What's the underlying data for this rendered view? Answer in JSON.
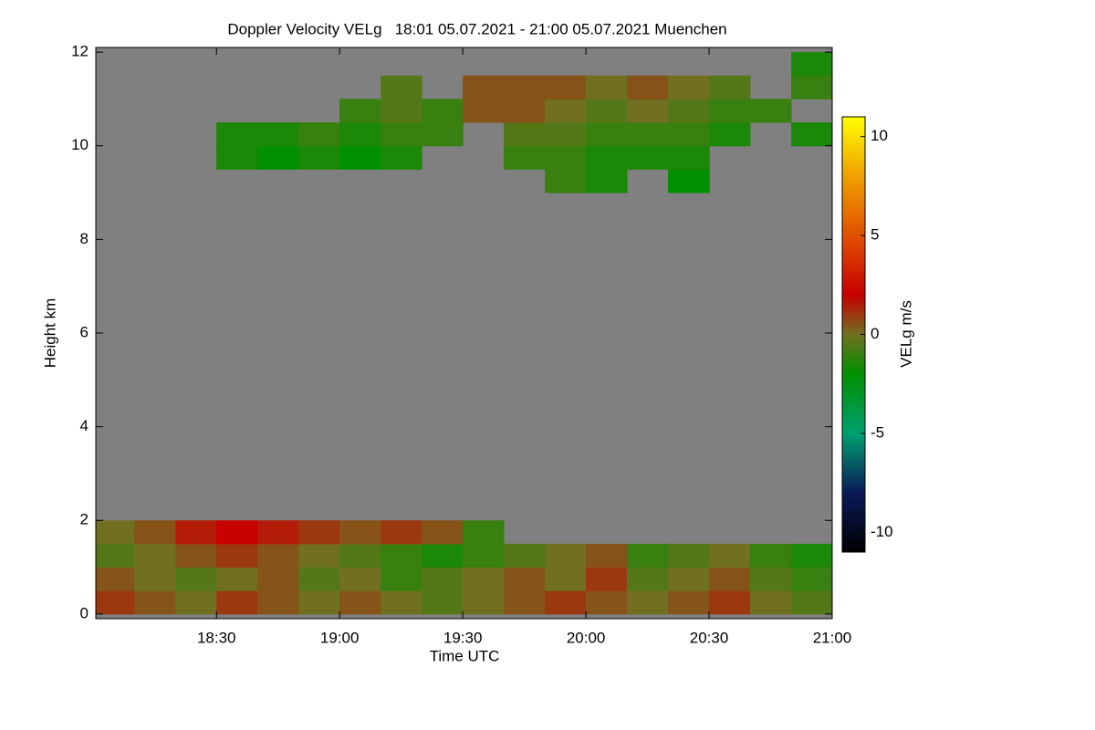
{
  "chart_data": {
    "type": "heatmap",
    "title": "Doppler Velocity VELg   18:01 05.07.2021 - 21:00 05.07.2021 Muenchen",
    "xlabel": "Time UTC",
    "ylabel": "Height km",
    "colorbar_label": "VELg m/s",
    "background": "#808080",
    "xlim": [
      18.01,
      21.0
    ],
    "xticks": [
      {
        "value": 18.5,
        "label": "18:30"
      },
      {
        "value": 19.0,
        "label": "19:00"
      },
      {
        "value": 19.5,
        "label": "19:30"
      },
      {
        "value": 20.0,
        "label": "20:00"
      },
      {
        "value": 20.5,
        "label": "20:30"
      },
      {
        "value": 21.0,
        "label": "21:00"
      }
    ],
    "ylim": [
      -0.1,
      12.1
    ],
    "yticks": [
      0,
      2,
      4,
      6,
      8,
      10,
      12
    ],
    "zlim": [
      -11,
      11
    ],
    "zticks": [
      -10,
      -5,
      0,
      5,
      10
    ],
    "colorscale": [
      [
        -11,
        "#000000"
      ],
      [
        -8,
        "#0a1a5a"
      ],
      [
        -5,
        "#00a070"
      ],
      [
        -2,
        "#009000"
      ],
      [
        0,
        "#707020"
      ],
      [
        2,
        "#c80000"
      ],
      [
        5,
        "#e05000"
      ],
      [
        8,
        "#f0a000"
      ],
      [
        11,
        "#ffff00"
      ]
    ],
    "x": [
      18.083,
      18.25,
      18.417,
      18.583,
      18.75,
      18.917,
      19.083,
      19.25,
      19.417,
      19.583,
      19.75,
      19.917,
      20.083,
      20.25,
      20.417,
      20.583,
      20.75,
      20.917
    ],
    "y": [
      0.25,
      0.75,
      1.25,
      1.75,
      2.25,
      2.75,
      3.25,
      3.75,
      4.25,
      4.75,
      5.25,
      5.75,
      6.25,
      6.75,
      7.25,
      7.75,
      8.25,
      8.75,
      9.25,
      9.75,
      10.25,
      10.75,
      11.25,
      11.75
    ],
    "z": [
      [
        1,
        0.5,
        0,
        1,
        0.5,
        0,
        0.5,
        0,
        -0.5,
        0,
        0.5,
        1,
        0.5,
        0,
        0.5,
        1,
        0,
        -0.5
      ],
      [
        0.5,
        0,
        -0.5,
        0,
        0.5,
        -0.5,
        0,
        -1,
        -0.5,
        0,
        0.5,
        0,
        1,
        -0.5,
        0,
        0.5,
        -0.5,
        -1
      ],
      [
        -0.5,
        0,
        0.5,
        1,
        0.5,
        0,
        -0.5,
        -1,
        -1.5,
        -1,
        -0.5,
        0,
        0.5,
        -1,
        -0.5,
        0,
        -1,
        -1.5
      ],
      [
        0,
        0.5,
        1.5,
        2,
        1.5,
        1,
        0.5,
        1,
        0.5,
        -1,
        null,
        null,
        null,
        null,
        null,
        null,
        null,
        null
      ],
      [
        null,
        null,
        null,
        null,
        null,
        null,
        null,
        null,
        null,
        null,
        null,
        null,
        null,
        null,
        null,
        null,
        null,
        null
      ],
      [
        null,
        null,
        null,
        null,
        null,
        null,
        null,
        null,
        null,
        null,
        null,
        null,
        null,
        null,
        null,
        null,
        null,
        null
      ],
      [
        null,
        null,
        null,
        null,
        null,
        null,
        null,
        null,
        null,
        null,
        null,
        null,
        null,
        null,
        null,
        null,
        null,
        null
      ],
      [
        null,
        null,
        null,
        null,
        null,
        null,
        null,
        null,
        null,
        null,
        null,
        null,
        null,
        null,
        null,
        null,
        null,
        null
      ],
      [
        null,
        null,
        null,
        null,
        null,
        null,
        null,
        null,
        null,
        null,
        null,
        null,
        null,
        null,
        null,
        null,
        null,
        null
      ],
      [
        null,
        null,
        null,
        null,
        null,
        null,
        null,
        null,
        null,
        null,
        null,
        null,
        null,
        null,
        null,
        null,
        null,
        null
      ],
      [
        null,
        null,
        null,
        null,
        null,
        null,
        null,
        null,
        null,
        null,
        null,
        null,
        null,
        null,
        null,
        null,
        null,
        null
      ],
      [
        null,
        null,
        null,
        null,
        null,
        null,
        null,
        null,
        null,
        null,
        null,
        null,
        null,
        null,
        null,
        null,
        null,
        null
      ],
      [
        null,
        null,
        null,
        null,
        null,
        null,
        null,
        null,
        null,
        null,
        null,
        null,
        null,
        null,
        null,
        null,
        null,
        null
      ],
      [
        null,
        null,
        null,
        null,
        null,
        null,
        null,
        null,
        null,
        null,
        null,
        null,
        null,
        null,
        null,
        null,
        null,
        null
      ],
      [
        null,
        null,
        null,
        null,
        null,
        null,
        null,
        null,
        null,
        null,
        null,
        null,
        null,
        null,
        null,
        null,
        null,
        null
      ],
      [
        null,
        null,
        null,
        null,
        null,
        null,
        null,
        null,
        null,
        null,
        null,
        null,
        null,
        null,
        null,
        null,
        null,
        null
      ],
      [
        null,
        null,
        null,
        null,
        null,
        null,
        null,
        null,
        null,
        null,
        null,
        null,
        null,
        null,
        null,
        null,
        null,
        null
      ],
      [
        null,
        null,
        null,
        null,
        null,
        null,
        null,
        null,
        null,
        null,
        null,
        null,
        null,
        null,
        null,
        null,
        null,
        null
      ],
      [
        null,
        null,
        null,
        null,
        null,
        null,
        null,
        null,
        null,
        null,
        null,
        -1,
        -1.5,
        null,
        -2,
        null,
        null,
        null
      ],
      [
        null,
        null,
        null,
        -1.5,
        -2,
        -1.5,
        -2,
        -1.5,
        null,
        null,
        -1,
        -1,
        -1.5,
        -1.5,
        -1.5,
        null,
        null,
        null
      ],
      [
        null,
        null,
        null,
        -1.5,
        -1.5,
        -1,
        -1.5,
        -1,
        -1,
        null,
        -0.5,
        -0.5,
        -1,
        -1,
        -1,
        -1.5,
        null,
        -1.5
      ],
      [
        null,
        null,
        null,
        null,
        null,
        null,
        -1,
        -0.5,
        -1,
        0.5,
        0.5,
        0,
        -0.5,
        0,
        -0.5,
        -1,
        -1,
        null
      ],
      [
        null,
        null,
        null,
        null,
        null,
        null,
        null,
        -0.5,
        null,
        0.5,
        0.5,
        0.5,
        0,
        0.5,
        0,
        -0.5,
        null,
        -1
      ],
      [
        null,
        null,
        null,
        null,
        null,
        null,
        null,
        null,
        null,
        null,
        null,
        null,
        null,
        null,
        null,
        null,
        null,
        -1.5
      ]
    ]
  }
}
